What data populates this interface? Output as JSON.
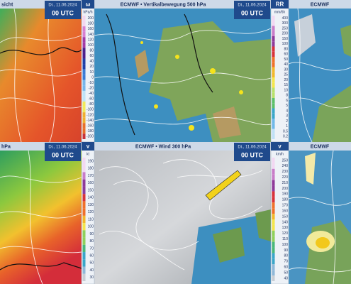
{
  "panels": [
    {
      "title": "sicht",
      "date": "Di., 11.06.2024",
      "time": "00 UTC"
    },
    {
      "title": "ECMWF • Vertikalbewegung 500 hPa",
      "date": "Di., 11.06.2024",
      "time": "00 UTC"
    },
    {
      "title": "ECMWF"
    },
    {
      "title": "hPa",
      "date": "Di., 11.06.2024",
      "time": "00 UTC"
    },
    {
      "title": "ECMWF • Wind 300 hPa",
      "date": "Di., 11.06.2024",
      "time": "00 UTC"
    },
    {
      "title": "ECMWF"
    }
  ],
  "scales": [
    {
      "symbol": "ω",
      "unit": "hPa/h",
      "labels": [
        "200",
        "180",
        "160",
        "140",
        "120",
        "100",
        "80",
        "60",
        "40",
        "20",
        "10",
        "0",
        "-10",
        "-20",
        "-40",
        "-60",
        "-80",
        "-100",
        "-120",
        "-140",
        "-160",
        "-180",
        "-200"
      ]
    },
    {
      "symbol": "RR",
      "unit": "mm/6h",
      "labels": [
        "400",
        "300",
        "250",
        "200",
        "150",
        "100",
        "80",
        "60",
        "50",
        "40",
        "30",
        "25",
        "20",
        "15",
        "10",
        "8",
        "6",
        "5",
        "4",
        "3",
        "2",
        "1",
        "0.5",
        "0.2"
      ]
    },
    {
      "symbol": "v",
      "unit": "kt",
      "labels": [
        "190",
        "180",
        "170",
        "160",
        "150",
        "140",
        "130",
        "120",
        "110",
        "100",
        "90",
        "80",
        "70",
        "60",
        "50",
        "40",
        "30"
      ]
    },
    {
      "symbol": "v",
      "unit": "km/h",
      "labels": [
        "250",
        "240",
        "230",
        "220",
        "210",
        "200",
        "190",
        "180",
        "170",
        "160",
        "150",
        "140",
        "130",
        "120",
        "110",
        "100",
        "90",
        "80",
        "70",
        "60",
        "50",
        "40"
      ]
    }
  ]
}
